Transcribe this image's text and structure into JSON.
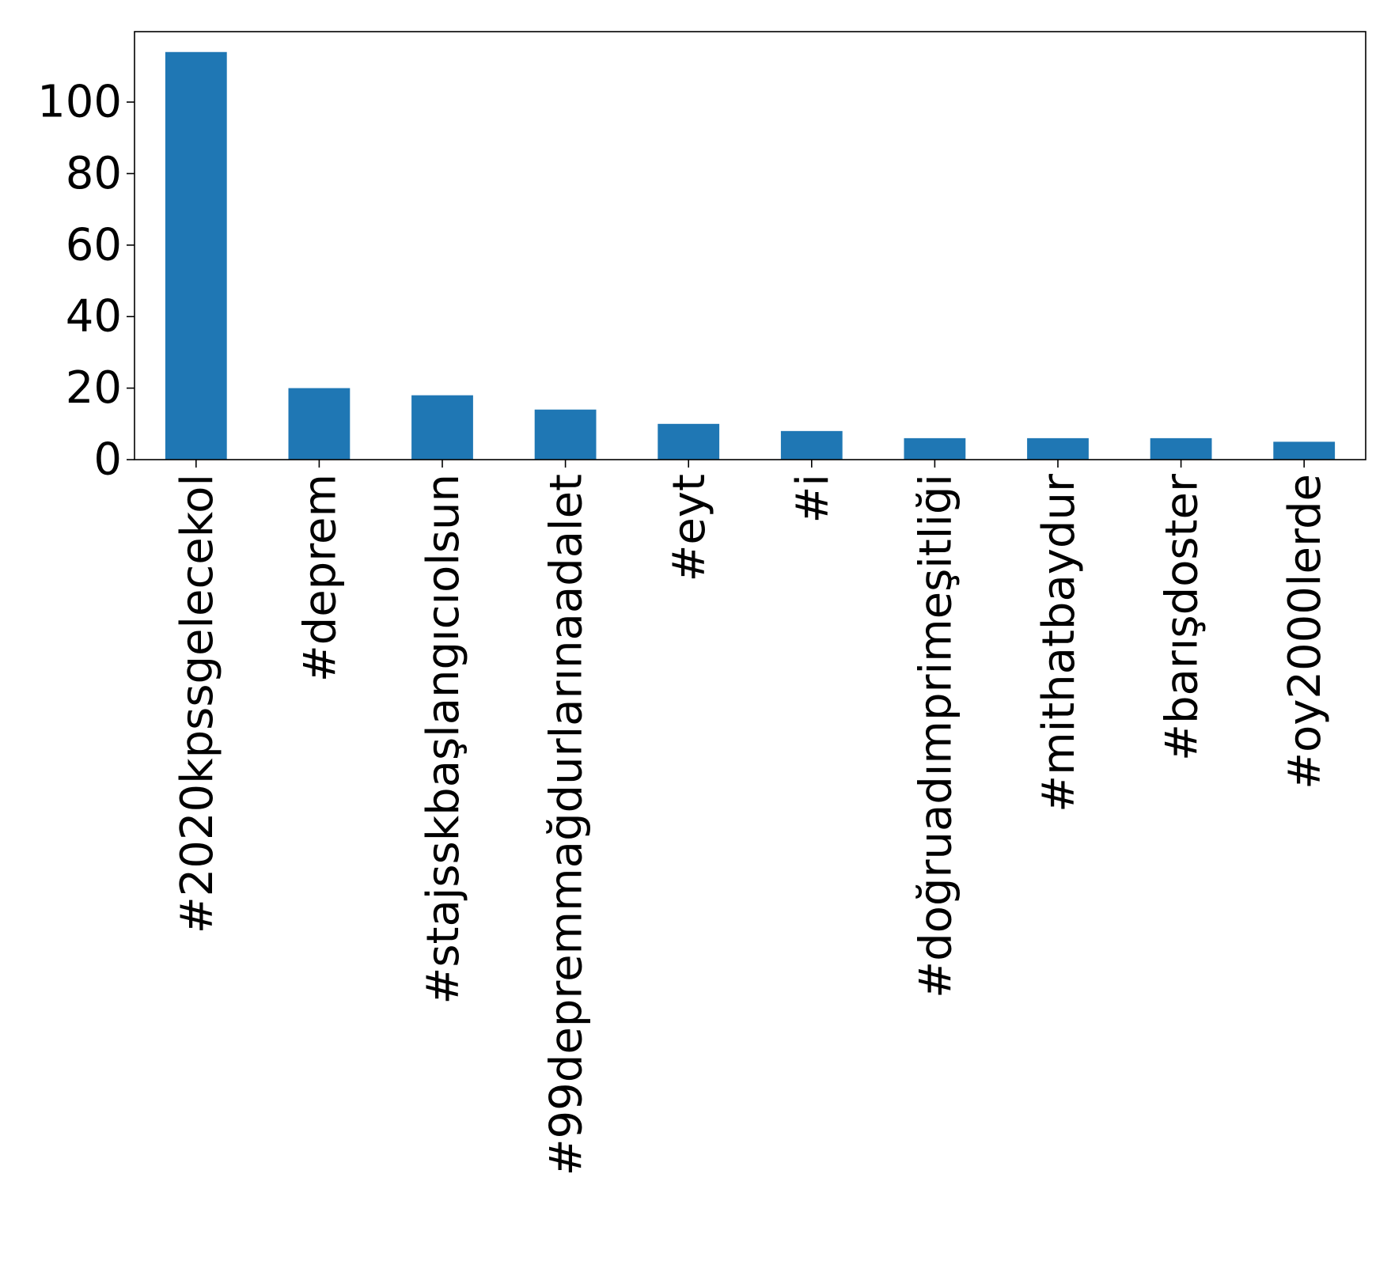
{
  "chart_data": {
    "type": "bar",
    "categories": [
      "#2020kpssgelecekol",
      "#deprem",
      "#stajsskbaşlangıcıolsun",
      "#99depremmağdurlarınaadalet",
      "#eyt",
      "#i",
      "#doğruadımprimeşitliği",
      "#mithatbaydur",
      "#barışdoster",
      "#oy2000lerde"
    ],
    "values": [
      114,
      20,
      18,
      14,
      10,
      8,
      6,
      6,
      6,
      5
    ],
    "title": "",
    "xlabel": "",
    "ylabel": "",
    "ylim": [
      0,
      119.7
    ],
    "yticks": [
      0,
      20,
      40,
      60,
      80,
      100
    ],
    "grid": false,
    "bar_color": "#1f77b4"
  }
}
